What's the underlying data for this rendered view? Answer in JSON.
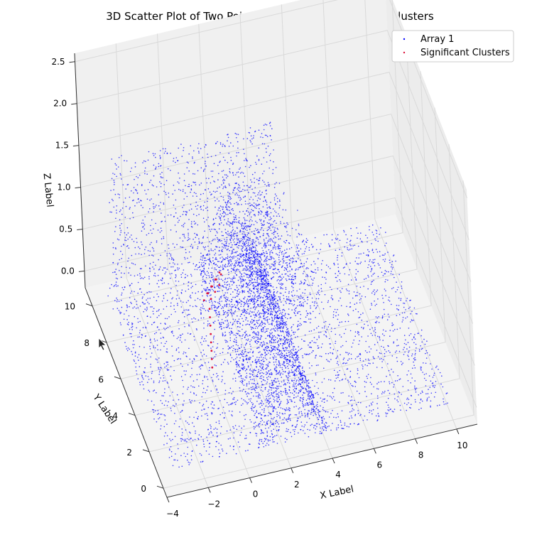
{
  "chart_data": {
    "type": "scatter",
    "title": "3D Scatter Plot of Two Point Clouds - Differences and Clusters",
    "xlabel": "X Label",
    "ylabel": "Y Label",
    "zlabel": "Z Label",
    "xlim": [
      -4,
      11
    ],
    "ylim": [
      -0.5,
      11
    ],
    "zlim": [
      -0.2,
      2.6
    ],
    "x_ticks": [
      -4,
      -2,
      0,
      2,
      4,
      6,
      8,
      10
    ],
    "y_ticks": [
      0,
      2,
      4,
      6,
      8,
      10
    ],
    "z_ticks": [
      0.0,
      0.5,
      1.0,
      1.5,
      2.0,
      2.5
    ],
    "z_tick_labels": [
      "0.0",
      "0.5",
      "1.0",
      "1.5",
      "2.0",
      "2.5"
    ],
    "grid": true,
    "legend_position": "top-right",
    "series": [
      {
        "name": "Array 1",
        "color": "#0000ff",
        "marker_size": 1,
        "structure": {
          "floor": {
            "x": [
              -3.5,
              10
            ],
            "y": [
              0,
              10
            ],
            "z": 0,
            "count": 2600
          },
          "back_wall": {
            "x": [
              -3,
              5
            ],
            "y": 10,
            "z": [
              0,
              1.5
            ],
            "count": 900
          },
          "ridge": {
            "x": [
              1,
              4
            ],
            "y": [
              0,
              10
            ],
            "z": [
              0,
              1.0
            ],
            "count": 2200
          },
          "slab": {
            "x": [
              2,
              5
            ],
            "y": [
              4,
              10
            ],
            "z": [
              0,
              1.2
            ],
            "count": 900
          }
        }
      },
      {
        "name": "Significant Clusters",
        "color": "#dc143c",
        "marker_size": 1,
        "points": [
          [
            -0.2,
            4.0,
            0.15
          ],
          [
            -0.2,
            4.0,
            0.25
          ],
          [
            -0.2,
            4.0,
            0.35
          ],
          [
            -0.2,
            4.0,
            0.45
          ],
          [
            -0.2,
            4.0,
            0.55
          ],
          [
            -0.2,
            4.0,
            0.65
          ],
          [
            -0.2,
            4.0,
            0.75
          ],
          [
            -0.2,
            4.0,
            0.85
          ],
          [
            -0.3,
            4.5,
            0.85
          ],
          [
            0.0,
            4.8,
            0.85
          ],
          [
            0.3,
            5.1,
            0.85
          ],
          [
            0.6,
            5.4,
            0.85
          ],
          [
            0.9,
            5.6,
            0.85
          ],
          [
            -0.1,
            4.6,
            0.9
          ],
          [
            0.2,
            4.9,
            0.9
          ],
          [
            0.5,
            5.2,
            0.9
          ],
          [
            0.8,
            5.5,
            0.9
          ],
          [
            0.1,
            4.7,
            0.8
          ],
          [
            0.4,
            5.0,
            0.8
          ],
          [
            0.7,
            5.3,
            0.8
          ]
        ]
      }
    ]
  }
}
